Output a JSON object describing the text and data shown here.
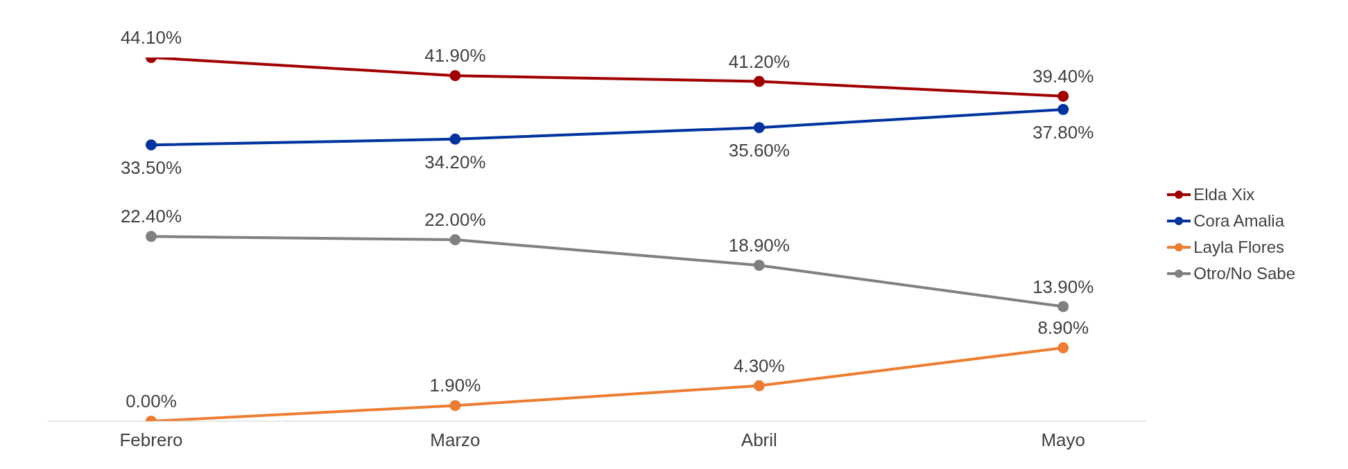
{
  "chart_data": {
    "type": "line",
    "categories": [
      "Febrero",
      "Marzo",
      "Abril",
      "Mayo"
    ],
    "series": [
      {
        "name": "Elda Xix",
        "color": "#a00000",
        "values": [
          44.1,
          41.9,
          41.2,
          39.4
        ],
        "value_labels": [
          "44.10%",
          "41.90%",
          "41.20%",
          "39.40%"
        ]
      },
      {
        "name": "Cora Amalia",
        "color": "#0033a0",
        "values": [
          33.5,
          34.2,
          35.6,
          37.8
        ],
        "value_labels": [
          "33.50%",
          "34.20%",
          "35.60%",
          "37.80%"
        ]
      },
      {
        "name": "Layla Flores",
        "color": "#ed7d31",
        "values": [
          0,
          1.9,
          4.3,
          8.9
        ],
        "value_labels": [
          "0.00%",
          "1.90%",
          "4.30%",
          "8.90%"
        ]
      },
      {
        "name": "Otro/No Sabe",
        "color": "#808080",
        "values": [
          22.4,
          22,
          18.9,
          13.9
        ],
        "value_labels": [
          "22.40%",
          "22.00%",
          "18.90%",
          "13.90%"
        ]
      }
    ],
    "marker": "circle",
    "legend": "right",
    "grid": false
  }
}
